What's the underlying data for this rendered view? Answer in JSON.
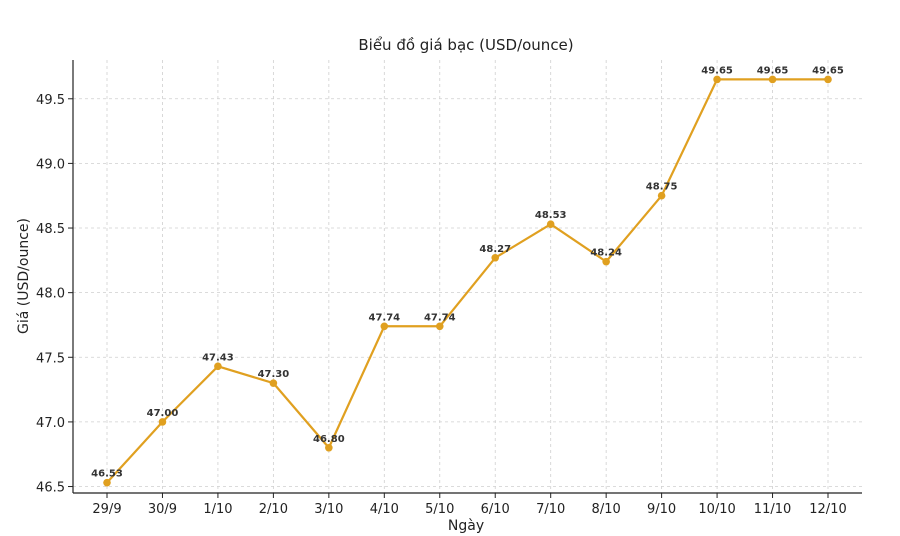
{
  "chart_data": {
    "type": "line",
    "title": "Biểu đồ giá bạc (USD/ounce)",
    "xlabel": "Ngày",
    "ylabel": "Giá (USD/ounce)",
    "categories": [
      "29/9",
      "30/9",
      "1/10",
      "2/10",
      "3/10",
      "4/10",
      "5/10",
      "6/10",
      "7/10",
      "8/10",
      "9/10",
      "10/10",
      "11/10",
      "12/10"
    ],
    "series": [
      {
        "values": [
          46.53,
          47.0,
          47.43,
          47.3,
          46.8,
          47.74,
          47.74,
          48.27,
          48.53,
          48.24,
          48.75,
          49.65,
          49.65,
          49.65
        ],
        "labels": [
          "46.53",
          "47.00",
          "47.43",
          "47.30",
          "46.80",
          "47.74",
          "47.74",
          "48.27",
          "48.53",
          "48.24",
          "48.75",
          "49.65",
          "49.65",
          "49.65"
        ],
        "color": "#e0a020"
      }
    ],
    "yticks": [
      46.5,
      47.0,
      47.5,
      48.0,
      48.5,
      49.0,
      49.5
    ],
    "ytick_labels": [
      "46.5",
      "47.0",
      "47.5",
      "48.0",
      "48.5",
      "49.0",
      "49.5"
    ],
    "ylim": [
      46.45,
      49.8
    ],
    "grid": true,
    "grid_style": "dashed"
  }
}
